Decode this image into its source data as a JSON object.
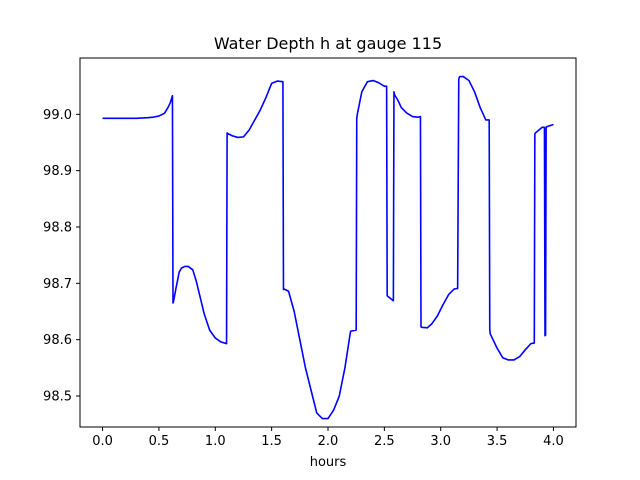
{
  "chart_data": {
    "type": "line",
    "title": "Water Depth h at gauge 115",
    "xlabel": "hours",
    "ylabel": "",
    "xlim": [
      -0.2,
      4.2
    ],
    "ylim": [
      98.445,
      99.1
    ],
    "xticks": [
      0.0,
      0.5,
      1.0,
      1.5,
      2.0,
      2.5,
      3.0,
      3.5,
      4.0
    ],
    "xtick_labels": [
      "0.0",
      "0.5",
      "1.0",
      "1.5",
      "2.0",
      "2.5",
      "3.0",
      "3.5",
      "4.0"
    ],
    "yticks": [
      98.5,
      98.6,
      98.7,
      98.8,
      98.9,
      99.0
    ],
    "ytick_labels": [
      "98.5",
      "98.6",
      "98.7",
      "98.8",
      "98.9",
      "99.0"
    ],
    "grid": false,
    "line_color": "#0000ff",
    "series": [
      {
        "x": [
          0.0,
          0.1,
          0.2,
          0.3,
          0.4,
          0.45,
          0.5,
          0.55,
          0.58,
          0.6,
          0.62,
          0.625,
          0.63,
          0.65,
          0.68,
          0.7,
          0.73,
          0.76,
          0.8,
          0.83,
          0.87,
          0.9,
          0.95,
          1.0,
          1.05,
          1.1,
          1.105,
          1.11,
          1.15,
          1.2,
          1.25,
          1.3,
          1.35,
          1.4,
          1.45,
          1.5,
          1.55,
          1.6,
          1.605,
          1.61,
          1.65,
          1.7,
          1.75,
          1.8,
          1.85,
          1.9,
          1.95,
          2.0,
          2.05,
          2.1,
          2.15,
          2.2,
          2.25,
          2.255,
          2.26,
          2.3,
          2.35,
          2.4,
          2.45,
          2.5,
          2.52,
          2.525,
          2.53,
          2.58,
          2.585,
          2.59,
          2.62,
          2.65,
          2.7,
          2.75,
          2.8,
          2.82,
          2.825,
          2.83,
          2.88,
          2.92,
          2.97,
          3.02,
          3.07,
          3.12,
          3.15,
          3.16,
          3.165,
          3.17,
          3.2,
          3.25,
          3.3,
          3.35,
          3.4,
          3.43,
          3.435,
          3.44,
          3.5,
          3.55,
          3.6,
          3.65,
          3.7,
          3.75,
          3.8,
          3.83,
          3.835,
          3.84,
          3.87,
          3.9,
          3.92,
          3.925,
          3.93,
          3.935,
          3.94,
          3.97,
          4.0
        ],
        "y": [
          98.993,
          98.993,
          98.993,
          98.993,
          98.994,
          98.995,
          98.997,
          99.002,
          99.012,
          99.02,
          99.033,
          98.665,
          98.668,
          98.69,
          98.72,
          98.727,
          98.73,
          98.73,
          98.724,
          98.705,
          98.672,
          98.647,
          98.617,
          98.603,
          98.596,
          98.593,
          98.967,
          98.966,
          98.962,
          98.959,
          98.96,
          98.972,
          98.99,
          99.008,
          99.03,
          99.055,
          99.059,
          99.058,
          98.689,
          98.69,
          98.686,
          98.65,
          98.6,
          98.55,
          98.51,
          98.47,
          98.46,
          98.46,
          98.475,
          98.5,
          98.55,
          98.615,
          98.617,
          98.993,
          99.0,
          99.04,
          99.058,
          99.06,
          99.056,
          99.05,
          99.05,
          98.678,
          98.677,
          98.669,
          99.04,
          99.035,
          99.025,
          99.012,
          99.002,
          98.996,
          98.995,
          98.996,
          98.623,
          98.622,
          98.621,
          98.628,
          98.642,
          98.662,
          98.68,
          98.69,
          98.691,
          99.062,
          99.066,
          99.067,
          99.067,
          99.06,
          99.04,
          99.012,
          98.99,
          98.99,
          98.617,
          98.61,
          98.585,
          98.568,
          98.564,
          98.564,
          98.57,
          98.582,
          98.593,
          98.594,
          98.965,
          98.967,
          98.972,
          98.977,
          98.977,
          98.607,
          98.608,
          98.977,
          98.978,
          98.98,
          98.982
        ]
      }
    ]
  }
}
